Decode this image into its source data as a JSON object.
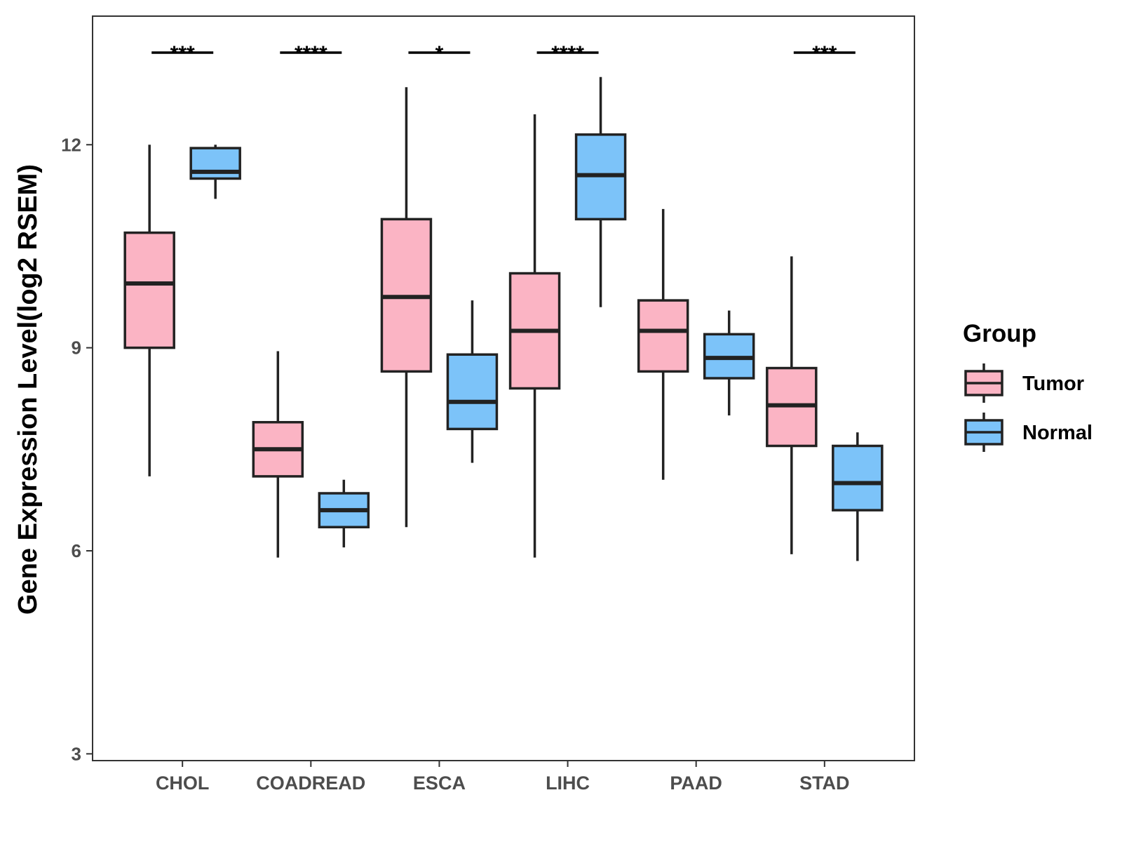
{
  "chart_data": {
    "type": "box",
    "title": "",
    "xlabel": "",
    "ylabel": "Gene Expression Level(log2 RSEM)",
    "ylim": [
      2.9,
      13.9
    ],
    "yticks": [
      3,
      6,
      9,
      12
    ],
    "ytick_labels": [
      "3",
      "6",
      "9",
      "12"
    ],
    "categories": [
      "CHOL",
      "COADREAD",
      "ESCA",
      "LIHC",
      "PAAD",
      "STAD"
    ],
    "legend": {
      "title": "Group",
      "position": "right",
      "entries": [
        {
          "name": "Tumor",
          "color": "#FBB4C4"
        },
        {
          "name": "Normal",
          "color": "#7CC3F9"
        }
      ]
    },
    "series": [
      {
        "name": "Tumor",
        "color": "#FBB4C4",
        "boxes": [
          {
            "category": "CHOL",
            "min": 7.1,
            "q1": 9.0,
            "median": 9.95,
            "q3": 10.7,
            "max": 12.0
          },
          {
            "category": "COADREAD",
            "min": 5.9,
            "q1": 7.1,
            "median": 7.5,
            "q3": 7.9,
            "max": 8.95
          },
          {
            "category": "ESCA",
            "min": 6.35,
            "q1": 8.65,
            "median": 9.75,
            "q3": 10.9,
            "max": 12.85
          },
          {
            "category": "LIHC",
            "min": 5.9,
            "q1": 8.4,
            "median": 9.25,
            "q3": 10.1,
            "max": 12.45
          },
          {
            "category": "PAAD",
            "min": 7.05,
            "q1": 8.65,
            "median": 9.25,
            "q3": 9.7,
            "max": 11.05
          },
          {
            "category": "STAD",
            "min": 5.95,
            "q1": 7.55,
            "median": 8.15,
            "q3": 8.7,
            "max": 10.35
          }
        ]
      },
      {
        "name": "Normal",
        "color": "#7CC3F9",
        "boxes": [
          {
            "category": "CHOL",
            "min": 11.2,
            "q1": 11.5,
            "median": 11.6,
            "q3": 11.95,
            "max": 12.0
          },
          {
            "category": "COADREAD",
            "min": 6.05,
            "q1": 6.35,
            "median": 6.6,
            "q3": 6.85,
            "max": 7.05
          },
          {
            "category": "ESCA",
            "min": 7.3,
            "q1": 7.8,
            "median": 8.2,
            "q3": 8.9,
            "max": 9.7
          },
          {
            "category": "LIHC",
            "min": 9.6,
            "q1": 10.9,
            "median": 11.55,
            "q3": 12.15,
            "max": 13.0
          },
          {
            "category": "PAAD",
            "min": 8.0,
            "q1": 8.55,
            "median": 8.85,
            "q3": 9.2,
            "max": 9.55
          },
          {
            "category": "STAD",
            "min": 5.85,
            "q1": 6.6,
            "median": 7.0,
            "q3": 7.55,
            "max": 7.75
          }
        ]
      }
    ],
    "significance": [
      {
        "category": "CHOL",
        "label": "***"
      },
      {
        "category": "COADREAD",
        "label": "****"
      },
      {
        "category": "ESCA",
        "label": "*"
      },
      {
        "category": "LIHC",
        "label": "****"
      },
      {
        "category": "PAAD",
        "label": ""
      },
      {
        "category": "STAD",
        "label": "***"
      }
    ],
    "grid": false
  }
}
